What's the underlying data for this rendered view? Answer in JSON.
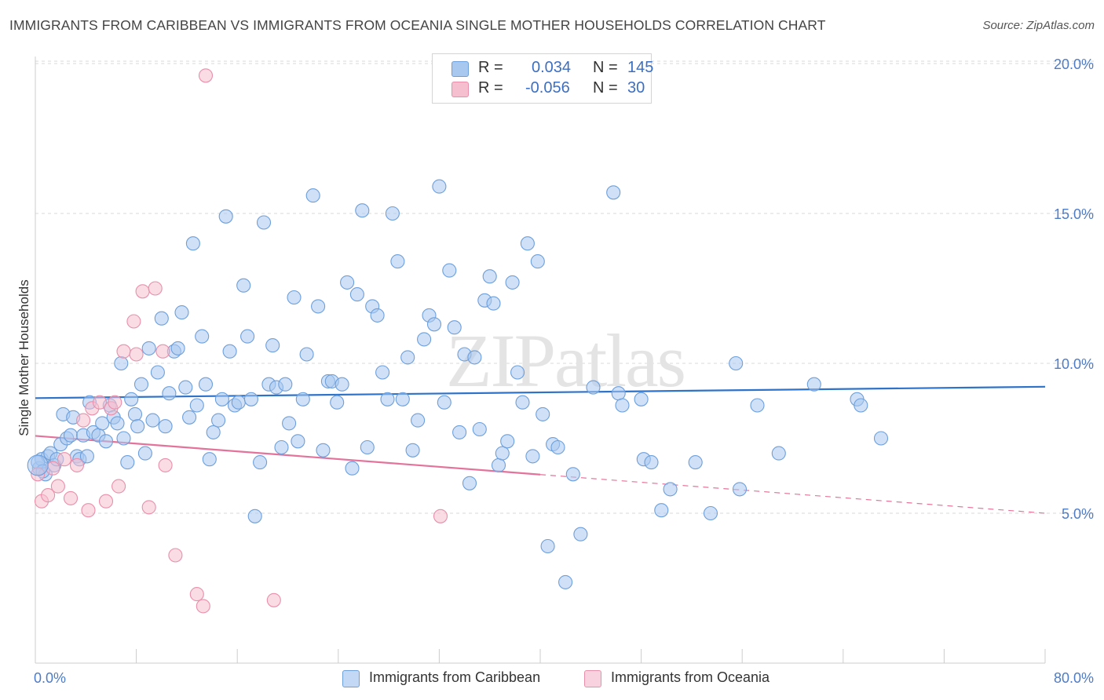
{
  "title": "IMMIGRANTS FROM CARIBBEAN VS IMMIGRANTS FROM OCEANIA SINGLE MOTHER HOUSEHOLDS CORRELATION CHART",
  "source": "Source: ZipAtlas.com",
  "watermark": "ZIPatlas",
  "colors": {
    "blue_fill": "#a9c8f0",
    "blue_stroke": "#6c9fdc",
    "blue_line": "#2f73c9",
    "pink_fill": "#f5bfd0",
    "pink_stroke": "#e98fab",
    "pink_line": "#e4739b",
    "tick_text": "#4f7cc6",
    "grid": "#d9d9d9"
  },
  "legend": {
    "rows": [
      {
        "label": "R =",
        "r": "0.034",
        "n_label": "N =",
        "n": "145",
        "color": "#a9c8f0"
      },
      {
        "label": "R =",
        "r": "-0.056",
        "n_label": "N =",
        "n": "30",
        "color": "#f5bfd0"
      }
    ]
  },
  "bottom_legend": [
    {
      "label": "Immigrants from Caribbean",
      "color": "#a9c8f0"
    },
    {
      "label": "Immigrants from Oceania",
      "color": "#f5bfd0"
    }
  ],
  "chart_data": {
    "type": "scatter",
    "xlabel": "",
    "ylabel": "Single Mother Households",
    "xlim": [
      0,
      80
    ],
    "ylim": [
      0,
      20.5
    ],
    "x_tick_labels": [
      "0.0%",
      "80.0%"
    ],
    "y_ticks": [
      {
        "value": 5,
        "label": "5.0%"
      },
      {
        "value": 10,
        "label": "10.0%"
      },
      {
        "value": 15,
        "label": "15.0%"
      },
      {
        "value": 20,
        "label": "20.0%"
      }
    ],
    "series": [
      {
        "name": "Immigrants from Caribbean",
        "r": 0.034,
        "n": 145,
        "trend": {
          "x": [
            0,
            80
          ],
          "y": [
            8.84,
            9.22
          ],
          "dashed_from": null
        },
        "points": [
          [
            0.3,
            6.5
          ],
          [
            0.5,
            6.8
          ],
          [
            0.8,
            6.3
          ],
          [
            1.0,
            6.9
          ],
          [
            1.2,
            7.0
          ],
          [
            1.5,
            6.6
          ],
          [
            1.7,
            6.8
          ],
          [
            2.0,
            7.3
          ],
          [
            2.2,
            8.3
          ],
          [
            2.5,
            7.5
          ],
          [
            2.8,
            7.6
          ],
          [
            3.0,
            8.2
          ],
          [
            3.3,
            6.9
          ],
          [
            3.5,
            6.8
          ],
          [
            3.8,
            7.6
          ],
          [
            4.1,
            6.9
          ],
          [
            4.3,
            8.7
          ],
          [
            4.6,
            7.7
          ],
          [
            5.0,
            7.6
          ],
          [
            5.3,
            8.0
          ],
          [
            5.6,
            7.4
          ],
          [
            5.9,
            8.6
          ],
          [
            6.2,
            8.2
          ],
          [
            6.5,
            8.0
          ],
          [
            6.8,
            10.0
          ],
          [
            7.0,
            7.5
          ],
          [
            7.3,
            6.7
          ],
          [
            7.6,
            8.8
          ],
          [
            7.9,
            8.3
          ],
          [
            8.1,
            7.9
          ],
          [
            8.4,
            9.3
          ],
          [
            8.7,
            7.0
          ],
          [
            9.0,
            10.5
          ],
          [
            9.3,
            8.1
          ],
          [
            9.7,
            9.7
          ],
          [
            10.0,
            11.5
          ],
          [
            10.3,
            7.9
          ],
          [
            10.6,
            9.0
          ],
          [
            11.0,
            10.4
          ],
          [
            11.3,
            10.5
          ],
          [
            11.6,
            11.7
          ],
          [
            11.9,
            9.2
          ],
          [
            12.2,
            8.2
          ],
          [
            12.5,
            14.0
          ],
          [
            12.8,
            8.6
          ],
          [
            13.2,
            10.9
          ],
          [
            13.5,
            9.3
          ],
          [
            13.8,
            6.8
          ],
          [
            14.1,
            7.7
          ],
          [
            14.5,
            8.1
          ],
          [
            14.8,
            8.8
          ],
          [
            15.1,
            14.9
          ],
          [
            15.4,
            10.4
          ],
          [
            15.8,
            8.6
          ],
          [
            16.1,
            8.7
          ],
          [
            16.5,
            12.6
          ],
          [
            16.8,
            10.9
          ],
          [
            17.1,
            8.8
          ],
          [
            17.4,
            4.9
          ],
          [
            17.8,
            6.7
          ],
          [
            18.1,
            14.7
          ],
          [
            18.5,
            9.3
          ],
          [
            18.8,
            10.6
          ],
          [
            19.1,
            9.2
          ],
          [
            19.5,
            7.2
          ],
          [
            19.8,
            9.3
          ],
          [
            20.1,
            8.0
          ],
          [
            20.5,
            12.2
          ],
          [
            20.8,
            7.4
          ],
          [
            21.2,
            8.8
          ],
          [
            21.5,
            10.3
          ],
          [
            22.0,
            15.6
          ],
          [
            22.4,
            11.9
          ],
          [
            22.8,
            7.1
          ],
          [
            23.2,
            9.4
          ],
          [
            23.5,
            9.4
          ],
          [
            23.9,
            8.7
          ],
          [
            24.3,
            9.3
          ],
          [
            24.7,
            12.7
          ],
          [
            25.1,
            6.5
          ],
          [
            25.5,
            12.3
          ],
          [
            25.9,
            15.1
          ],
          [
            26.3,
            7.2
          ],
          [
            26.7,
            11.9
          ],
          [
            27.1,
            11.6
          ],
          [
            27.5,
            9.7
          ],
          [
            27.9,
            8.8
          ],
          [
            28.3,
            15.0
          ],
          [
            28.7,
            13.4
          ],
          [
            29.1,
            8.8
          ],
          [
            29.5,
            10.2
          ],
          [
            29.9,
            7.1
          ],
          [
            30.3,
            8.1
          ],
          [
            30.8,
            10.8
          ],
          [
            31.2,
            11.6
          ],
          [
            31.6,
            11.3
          ],
          [
            32.0,
            15.9
          ],
          [
            32.4,
            8.7
          ],
          [
            32.8,
            13.1
          ],
          [
            33.2,
            11.2
          ],
          [
            33.6,
            7.7
          ],
          [
            34.0,
            10.3
          ],
          [
            34.4,
            6.0
          ],
          [
            34.8,
            10.2
          ],
          [
            35.2,
            7.8
          ],
          [
            35.6,
            12.1
          ],
          [
            36.0,
            12.9
          ],
          [
            36.3,
            12.0
          ],
          [
            36.7,
            6.6
          ],
          [
            37.0,
            7.0
          ],
          [
            37.4,
            7.4
          ],
          [
            37.8,
            12.7
          ],
          [
            38.2,
            9.7
          ],
          [
            38.6,
            8.7
          ],
          [
            39.0,
            14.0
          ],
          [
            39.4,
            6.9
          ],
          [
            39.8,
            13.4
          ],
          [
            40.2,
            8.3
          ],
          [
            40.6,
            3.9
          ],
          [
            41.0,
            7.3
          ],
          [
            41.4,
            7.2
          ],
          [
            42.0,
            2.7
          ],
          [
            42.6,
            6.3
          ],
          [
            43.2,
            4.3
          ],
          [
            44.2,
            9.2
          ],
          [
            45.8,
            15.7
          ],
          [
            46.2,
            9.0
          ],
          [
            46.5,
            8.6
          ],
          [
            48.0,
            8.8
          ],
          [
            48.2,
            6.8
          ],
          [
            48.8,
            6.7
          ],
          [
            49.6,
            5.1
          ],
          [
            50.3,
            5.8
          ],
          [
            52.3,
            6.7
          ],
          [
            53.5,
            5.0
          ],
          [
            55.5,
            10.0
          ],
          [
            55.8,
            5.8
          ],
          [
            57.2,
            8.6
          ],
          [
            58.9,
            7.0
          ],
          [
            61.7,
            9.3
          ],
          [
            65.1,
            8.8
          ],
          [
            65.4,
            8.6
          ],
          [
            67.0,
            7.5
          ],
          [
            0.2,
            6.7
          ],
          [
            0.6,
            6.4
          ]
        ]
      },
      {
        "name": "Immigrants from Oceania",
        "r": -0.056,
        "n": 30,
        "trend": {
          "x": [
            0,
            80
          ],
          "y": [
            7.58,
            5.0
          ],
          "dashed_from": 40
        },
        "points": [
          [
            0.2,
            6.3
          ],
          [
            0.5,
            5.4
          ],
          [
            1.0,
            5.6
          ],
          [
            1.4,
            6.5
          ],
          [
            1.8,
            5.9
          ],
          [
            2.3,
            6.8
          ],
          [
            2.8,
            5.5
          ],
          [
            3.3,
            6.6
          ],
          [
            3.8,
            8.1
          ],
          [
            4.2,
            5.1
          ],
          [
            4.5,
            8.5
          ],
          [
            5.1,
            8.7
          ],
          [
            5.6,
            5.4
          ],
          [
            6.0,
            8.5
          ],
          [
            6.3,
            8.7
          ],
          [
            6.6,
            5.9
          ],
          [
            7.0,
            10.4
          ],
          [
            7.8,
            11.4
          ],
          [
            8.0,
            10.3
          ],
          [
            8.5,
            12.4
          ],
          [
            9.0,
            5.2
          ],
          [
            9.5,
            12.5
          ],
          [
            10.1,
            10.4
          ],
          [
            10.3,
            6.6
          ],
          [
            11.1,
            3.6
          ],
          [
            12.8,
            2.3
          ],
          [
            13.3,
            1.9
          ],
          [
            13.5,
            19.6
          ],
          [
            18.9,
            2.1
          ],
          [
            32.1,
            4.9
          ]
        ]
      }
    ]
  }
}
